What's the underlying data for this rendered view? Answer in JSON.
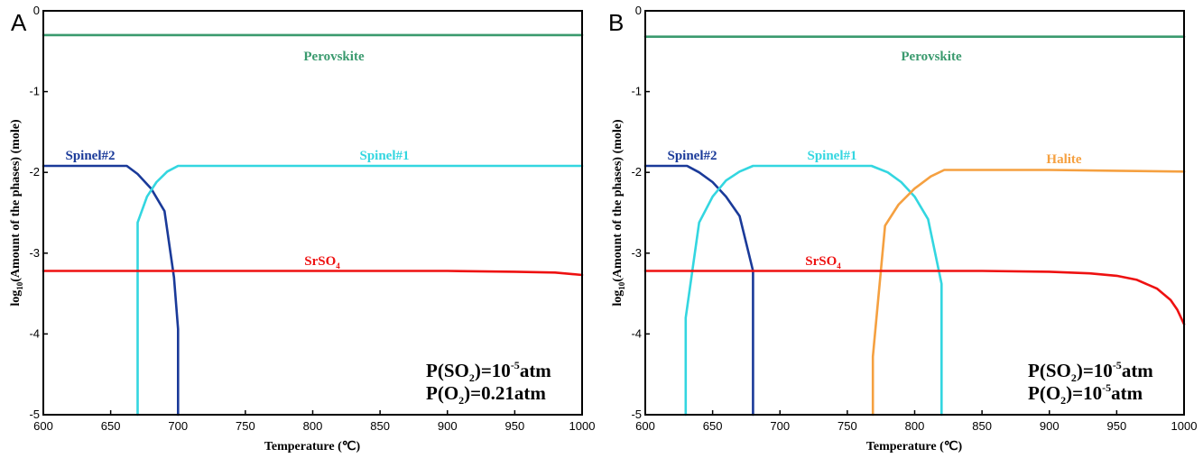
{
  "chart_data": [
    {
      "panel": "A",
      "type": "line",
      "xlabel": "Temperature (℃)",
      "ylabel": "log10(Amount of the phases) (mole)",
      "xlim": [
        600,
        1000
      ],
      "ylim": [
        -5,
        0
      ],
      "xticks": [
        "600",
        "650",
        "700",
        "750",
        "800",
        "850",
        "900",
        "950",
        "1000"
      ],
      "yticks": [
        "0",
        "-1",
        "-2",
        "-3",
        "-4",
        "-5"
      ],
      "grid": false,
      "series": [
        {
          "name": "Perovskite",
          "color": "#3a9a6e",
          "x": [
            600,
            1000
          ],
          "y": [
            -0.3,
            -0.3
          ]
        },
        {
          "name": "Spinel#2",
          "color": "#1a3a99",
          "x": [
            600,
            662,
            670,
            680,
            690,
            697,
            700,
            700
          ],
          "y": [
            -1.92,
            -1.92,
            -2.02,
            -2.2,
            -2.48,
            -3.3,
            -3.94,
            -5
          ]
        },
        {
          "name": "Spinel#1",
          "color": "#33d6e0",
          "x": [
            670,
            670,
            677,
            684,
            692,
            700,
            1000
          ],
          "y": [
            -5,
            -2.62,
            -2.3,
            -2.12,
            -1.99,
            -1.92,
            -1.92
          ]
        },
        {
          "name": "SrSO4",
          "color": "#ee1111",
          "x": [
            600,
            900,
            950,
            980,
            1000
          ],
          "y": [
            -3.22,
            -3.22,
            -3.23,
            -3.24,
            -3.27
          ]
        }
      ],
      "conditions": {
        "line1": {
          "pre": "P(SO",
          "sub": "2",
          "mid": ")=10",
          "sup": "-5",
          "post": "atm"
        },
        "line2": {
          "pre": "P(O",
          "sub": "2",
          "post": ")=0.21atm"
        }
      }
    },
    {
      "panel": "B",
      "type": "line",
      "xlabel": "Temperature (℃)",
      "ylabel": "log10(Amount of the phases) (mole)",
      "xlim": [
        600,
        1000
      ],
      "ylim": [
        -5,
        0
      ],
      "xticks": [
        "600",
        "650",
        "700",
        "750",
        "800",
        "850",
        "900",
        "950",
        "1000"
      ],
      "yticks": [
        "0",
        "-1",
        "-2",
        "-3",
        "-4",
        "-5"
      ],
      "grid": false,
      "series": [
        {
          "name": "Perovskite",
          "color": "#3a9a6e",
          "x": [
            600,
            1000
          ],
          "y": [
            -0.32,
            -0.32
          ]
        },
        {
          "name": "Spinel#2",
          "color": "#1a3a99",
          "x": [
            600,
            631,
            640,
            650,
            660,
            670,
            680,
            680
          ],
          "y": [
            -1.92,
            -1.92,
            -2.0,
            -2.12,
            -2.3,
            -2.54,
            -3.22,
            -5
          ]
        },
        {
          "name": "Spinel#1",
          "color": "#33d6e0",
          "x": [
            630,
            630,
            640,
            650,
            660,
            670,
            680,
            768,
            780,
            790,
            800,
            810,
            820,
            820
          ],
          "y": [
            -5,
            -3.8,
            -2.62,
            -2.3,
            -2.1,
            -1.99,
            -1.92,
            -1.92,
            -2.0,
            -2.12,
            -2.3,
            -2.58,
            -3.38,
            -5
          ]
        },
        {
          "name": "Halite",
          "color": "#f5a040",
          "x": [
            769,
            769,
            778,
            788,
            800,
            812,
            822,
            900,
            950,
            1000
          ],
          "y": [
            -5,
            -4.28,
            -2.66,
            -2.4,
            -2.2,
            -2.05,
            -1.97,
            -1.97,
            -1.98,
            -1.99
          ]
        },
        {
          "name": "SrSO4",
          "color": "#ee1111",
          "x": [
            600,
            850,
            900,
            930,
            950,
            965,
            980,
            990,
            995,
            1000
          ],
          "y": [
            -3.22,
            -3.22,
            -3.23,
            -3.25,
            -3.28,
            -3.33,
            -3.44,
            -3.58,
            -3.7,
            -3.88
          ]
        }
      ],
      "conditions": {
        "line1": {
          "pre": "P(SO",
          "sub": "2",
          "mid": ")=10",
          "sup": "-5",
          "post": "atm"
        },
        "line2": {
          "pre": "P(O",
          "sub": "2",
          "mid": ")=10",
          "sup": "-5",
          "post": "atm"
        }
      }
    }
  ]
}
